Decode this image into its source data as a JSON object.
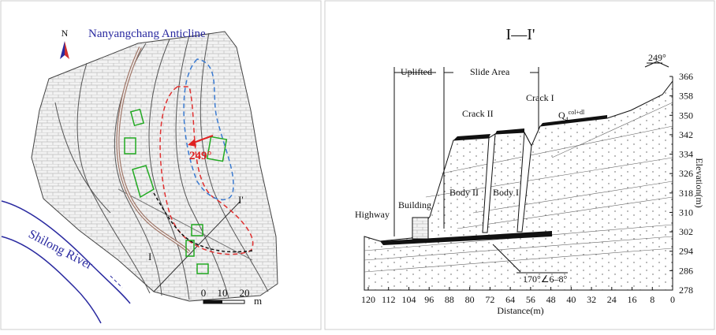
{
  "map": {
    "north": "N",
    "title": "Nanyangchang Anticline",
    "direction": "249°",
    "river": "Shilong River",
    "section_start": "I",
    "section_end": "I'",
    "scale_ticks": [
      0,
      10,
      20
    ],
    "scale_unit": "m"
  },
  "section": {
    "title": "I—I'",
    "uplifted": "Uplifted",
    "slide_area": "Slide Area",
    "direction": "249°",
    "crack_1": "Crack I",
    "crack_2": "Crack II",
    "deposit": "Q",
    "deposit_sub": "4",
    "deposit_sup": "col+dl",
    "body_2": "Body II",
    "body_1": "Body I",
    "building": "Building",
    "highway": "Highway",
    "dip": "170°∠6–8°",
    "y_label": "Elevation(m)",
    "x_label": "Distance(m)",
    "ylim": [
      278,
      366
    ],
    "yticks": [
      366,
      358,
      350,
      342,
      334,
      326,
      318,
      310,
      302,
      294,
      286,
      278
    ],
    "xlim": [
      120,
      0
    ],
    "xticks": [
      120,
      112,
      104,
      96,
      88,
      80,
      72,
      64,
      56,
      48,
      40,
      32,
      24,
      16,
      8,
      0
    ]
  }
}
